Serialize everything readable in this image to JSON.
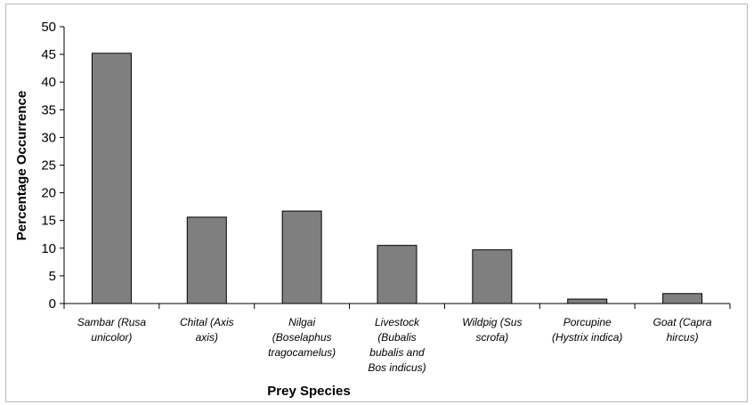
{
  "chart_data": {
    "type": "bar",
    "title": "",
    "xlabel": "Prey Species",
    "ylabel": "Percentage Occurrence",
    "ylim": [
      0,
      50
    ],
    "yticks": [
      "0",
      "5",
      "10",
      "15",
      "20",
      "25",
      "30",
      "35",
      "40",
      "45",
      "50"
    ],
    "grid": false,
    "legend": "none",
    "bar_color": "#7f7f7f",
    "categories": [
      [
        "Sambar (Rusa",
        "unicolor)"
      ],
      [
        "Chital (Axis",
        "axis)"
      ],
      [
        "Nilgai",
        "(Boselaphus",
        "tragocamelus)"
      ],
      [
        "Livestock",
        "(Bubalis",
        "bubalis and",
        "Bos indicus)"
      ],
      [
        "Wildpig (Sus",
        "scrofa)"
      ],
      [
        "Porcupine",
        "(Hystrix indica)"
      ],
      [
        "Goat (Capra",
        "hircus)"
      ]
    ],
    "values": [
      45.2,
      15.6,
      16.7,
      10.5,
      9.7,
      0.8,
      1.8
    ]
  }
}
